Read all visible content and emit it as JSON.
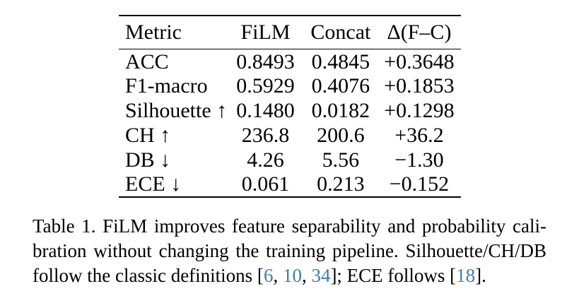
{
  "colors": {
    "background": "#ffffff",
    "text": "#000000",
    "rule": "#000000",
    "citation_link": "#3e7db4"
  },
  "table": {
    "headers": [
      "Metric",
      "FiLM",
      "Concat",
      "Δ(F–C)"
    ],
    "rows": [
      {
        "metric": "ACC",
        "film": "0.8493",
        "concat": "0.4845",
        "delta": "+0.3648"
      },
      {
        "metric": "F1-macro",
        "film": "0.5929",
        "concat": "0.4076",
        "delta": "+0.1853"
      },
      {
        "metric": "Silhouette ↑",
        "film": "0.1480",
        "concat": "0.0182",
        "delta": "+0.1298"
      },
      {
        "metric": "CH ↑",
        "film": "236.8",
        "concat": "200.6",
        "delta": "+36.2"
      },
      {
        "metric": "DB ↓",
        "film": "4.26",
        "concat": "5.56",
        "delta": "−1.30"
      },
      {
        "metric": "ECE ↓",
        "film": "0.061",
        "concat": "0.213",
        "delta": "−0.152"
      }
    ]
  },
  "caption": {
    "line1": "Table 1. FiLM improves feature separability and probability cali-",
    "line2": "bration without changing the training pipeline. Silhouette/CH/DB",
    "line3": {
      "pre": "follow the classic definitions [",
      "cite1": "6",
      "sep1": ", ",
      "cite2": "10",
      "sep2": ", ",
      "cite3": "34",
      "mid": "]; ECE follows [",
      "cite4": "18",
      "post": "]."
    }
  }
}
